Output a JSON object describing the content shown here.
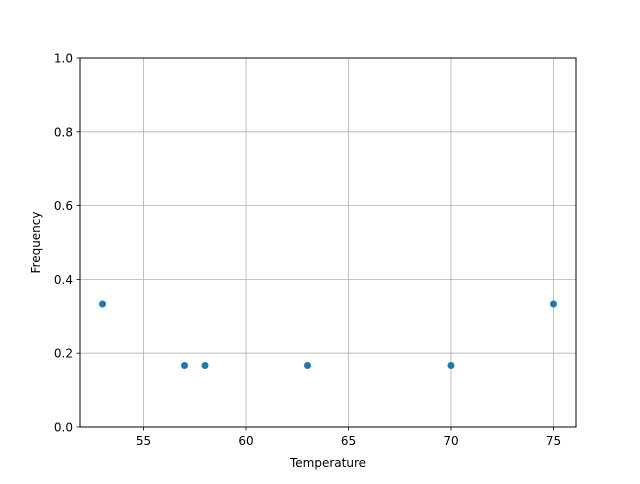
{
  "chart_data": {
    "type": "scatter",
    "title": "",
    "xlabel": "Temperature",
    "ylabel": "Frequency",
    "xlim": [
      51.9,
      76.1
    ],
    "ylim": [
      0,
      1.0
    ],
    "xticks": [
      55,
      60,
      65,
      70,
      75
    ],
    "yticks": [
      0.0,
      0.2,
      0.4,
      0.6,
      0.8,
      1.0
    ],
    "xtick_labels": [
      "55",
      "60",
      "65",
      "70",
      "75"
    ],
    "ytick_labels": [
      "0.0",
      "0.2",
      "0.4",
      "0.6",
      "0.8",
      "1.0"
    ],
    "grid": true,
    "points": [
      {
        "x": 53,
        "y": 0.3333
      },
      {
        "x": 57,
        "y": 0.1667
      },
      {
        "x": 58,
        "y": 0.1667
      },
      {
        "x": 63,
        "y": 0.1667
      },
      {
        "x": 70,
        "y": 0.1667
      },
      {
        "x": 75,
        "y": 0.3333
      }
    ],
    "color": "#1f77b4"
  }
}
